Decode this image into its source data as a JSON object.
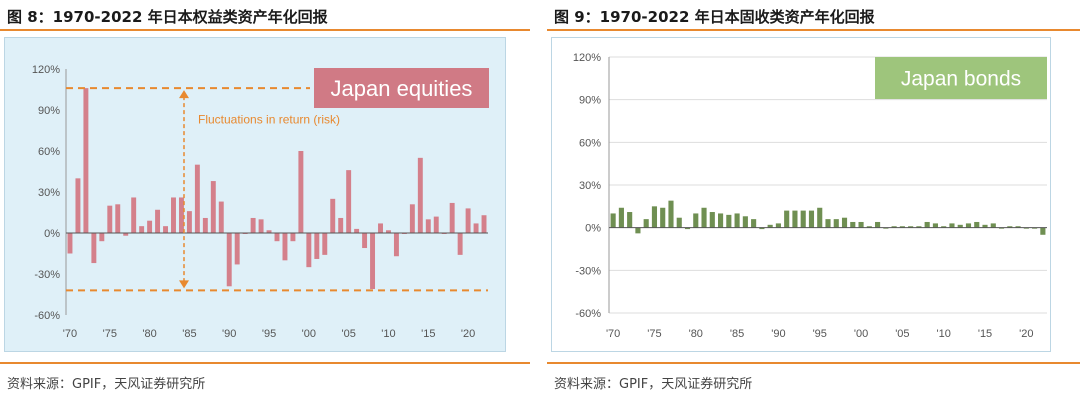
{
  "figures": [
    {
      "title": "图 8：1970-2022 年日本权益类资产年化回报",
      "source": "资料来源：GPIF，天风证券研究所"
    },
    {
      "title": "图 9：1970-2022 年日本固收类资产年化回报",
      "source": "资料来源：GPIF，天风证券研究所"
    }
  ],
  "chart_data": [
    {
      "type": "bar",
      "title": "Japan equities",
      "annotation": "Fluctuations in return (risk)",
      "x": [
        1970,
        1971,
        1972,
        1973,
        1974,
        1975,
        1976,
        1977,
        1978,
        1979,
        1980,
        1981,
        1982,
        1983,
        1984,
        1985,
        1986,
        1987,
        1988,
        1989,
        1990,
        1991,
        1992,
        1993,
        1994,
        1995,
        1996,
        1997,
        1998,
        1999,
        2000,
        2001,
        2002,
        2003,
        2004,
        2005,
        2006,
        2007,
        2008,
        2009,
        2010,
        2011,
        2012,
        2013,
        2014,
        2015,
        2016,
        2017,
        2018,
        2019,
        2020,
        2021,
        2022
      ],
      "values": [
        -15,
        40,
        106,
        -22,
        -6,
        20,
        21,
        -2,
        26,
        5,
        9,
        17,
        5,
        26,
        26,
        16,
        50,
        11,
        38,
        23,
        -39,
        -23,
        0,
        11,
        10,
        2,
        -6,
        -20,
        -6,
        60,
        -25,
        -19,
        -16,
        25,
        11,
        46,
        3,
        -11,
        -41,
        7,
        2,
        -17,
        0,
        21,
        55,
        10,
        12,
        0,
        22,
        -16,
        18,
        7,
        13
      ],
      "xticks": [
        "'70",
        "'75",
        "'80",
        "'85",
        "'90",
        "'95",
        "'00",
        "'05",
        "'10",
        "'15",
        "'20"
      ],
      "yticks": [
        "120%",
        "90%",
        "60%",
        "30%",
        "0%",
        "-30%",
        "-60%"
      ],
      "ylim": [
        -60,
        120
      ],
      "reference_lines": [
        106,
        -42
      ],
      "bar_color": "#d4808b",
      "label_color": "#d07a85",
      "annotation_color": "#e8892f",
      "background": "#dff0f8"
    },
    {
      "type": "bar",
      "title": "Japan bonds",
      "x": [
        1970,
        1971,
        1972,
        1973,
        1974,
        1975,
        1976,
        1977,
        1978,
        1979,
        1980,
        1981,
        1982,
        1983,
        1984,
        1985,
        1986,
        1987,
        1988,
        1989,
        1990,
        1991,
        1992,
        1993,
        1994,
        1995,
        1996,
        1997,
        1998,
        1999,
        2000,
        2001,
        2002,
        2003,
        2004,
        2005,
        2006,
        2007,
        2008,
        2009,
        2010,
        2011,
        2012,
        2013,
        2014,
        2015,
        2016,
        2017,
        2018,
        2019,
        2020,
        2021,
        2022
      ],
      "values": [
        10,
        14,
        11,
        -4,
        6,
        15,
        14,
        19,
        7,
        -1,
        10,
        14,
        11,
        10,
        9,
        10,
        8,
        6,
        -1,
        2,
        3,
        12,
        12,
        12,
        12,
        14,
        6,
        6,
        7,
        4,
        4,
        1,
        4,
        0,
        1,
        1,
        1,
        1,
        4,
        3,
        1,
        3,
        2,
        3,
        4,
        2,
        3,
        0,
        1,
        1,
        0,
        0,
        -5
      ],
      "xticks": [
        "'70",
        "'75",
        "'80",
        "'85",
        "'90",
        "'95",
        "'00",
        "'05",
        "'10",
        "'15",
        "'20"
      ],
      "yticks": [
        "120%",
        "90%",
        "60%",
        "30%",
        "0%",
        "-30%",
        "-60%"
      ],
      "ylim": [
        -60,
        120
      ],
      "bar_color": "#6f8f52",
      "label_color": "#9ec57c",
      "background": "#ffffff"
    }
  ]
}
